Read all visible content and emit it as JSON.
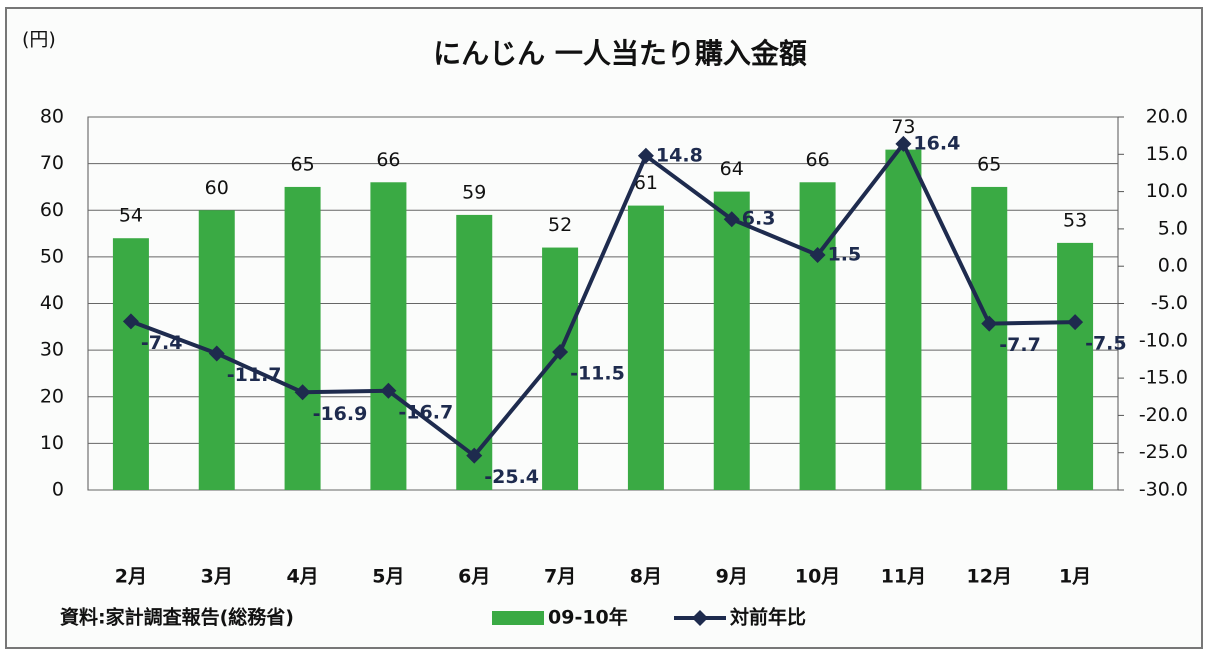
{
  "chart_data": {
    "type": "bar",
    "title": "にんじん 一人当たり購入金額",
    "y_label": "(円)",
    "source": "資料:家計調査報告(総務省)",
    "categories": [
      "2月",
      "3月",
      "4月",
      "5月",
      "6月",
      "7月",
      "8月",
      "9月",
      "10月",
      "11月",
      "12月",
      "1月"
    ],
    "series": [
      {
        "name": "09-10年",
        "type": "bar",
        "color": "#3aaa44",
        "values": [
          54,
          60,
          65,
          66,
          59,
          52,
          61,
          64,
          66,
          73,
          65,
          53
        ]
      },
      {
        "name": "対前年比",
        "type": "line",
        "axis": "y2",
        "color": "#1e2b4e",
        "values": [
          -7.4,
          -11.7,
          -16.9,
          -16.7,
          -25.4,
          -11.5,
          14.8,
          6.3,
          1.5,
          16.4,
          -7.7,
          -7.5
        ]
      }
    ],
    "ylim": [
      0,
      80
    ],
    "yticks": [
      0,
      10,
      20,
      30,
      40,
      50,
      60,
      70,
      80
    ],
    "y2lim": [
      -30,
      20
    ],
    "y2ticks": [
      {
        "value": 20,
        "label": "20.0"
      },
      {
        "value": 15,
        "label": "15.0"
      },
      {
        "value": 10,
        "label": "10.0"
      },
      {
        "value": 5,
        "label": "5.0"
      },
      {
        "value": 0,
        "label": "0.0"
      },
      {
        "value": -5,
        "label": "-5.0"
      },
      {
        "value": -10,
        "label": "-10.0"
      },
      {
        "value": -15,
        "label": "-15.0"
      },
      {
        "value": -20,
        "label": "-20.0"
      },
      {
        "value": -25,
        "label": "-25.0"
      },
      {
        "value": -30,
        "label": "-30.0"
      }
    ],
    "grid": true
  }
}
